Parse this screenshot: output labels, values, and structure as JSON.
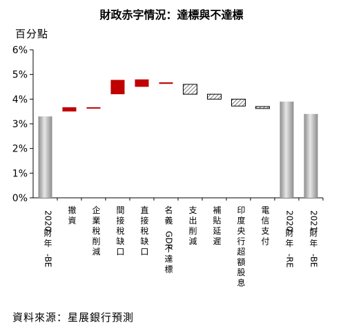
{
  "title": "財政赤字情況：達標與不達標",
  "unit_label": "百分點",
  "source": "資料來源：星展銀行預測",
  "colors": {
    "total_bar": "#b4b4b4",
    "increase": "#c00000",
    "decrease_hatch": "#555555"
  },
  "chart_data": {
    "type": "bar",
    "subtype": "waterfall",
    "y_axis": {
      "min": 0,
      "max": 6,
      "step": 1,
      "suffix": "%",
      "tick_labels": [
        "0%",
        "1%",
        "2%",
        "3%",
        "4%",
        "5%",
        "6%"
      ]
    },
    "grid": false,
    "legend": "none",
    "bars": [
      {
        "label": "2020財年-BE",
        "kind": "total",
        "from": 0,
        "to": 3.3
      },
      {
        "label": "撤資",
        "kind": "increase",
        "from": 3.5,
        "to": 3.67
      },
      {
        "label": "企業稅削減",
        "kind": "increase",
        "from": 3.62,
        "to": 3.67
      },
      {
        "label": "間接稅缺口",
        "kind": "increase",
        "from": 4.2,
        "to": 4.78
      },
      {
        "label": "直接稅缺口",
        "kind": "increase",
        "from": 4.5,
        "to": 4.8
      },
      {
        "label": "名義GDP不達標",
        "kind": "increase",
        "from": 4.62,
        "to": 4.68
      },
      {
        "label": "支出削減",
        "kind": "decrease",
        "from": 4.2,
        "to": 4.6
      },
      {
        "label": "補貼延遲",
        "kind": "decrease",
        "from": 4.0,
        "to": 4.2
      },
      {
        "label": "印度央行超額股息",
        "kind": "decrease",
        "from": 3.72,
        "to": 4.0
      },
      {
        "label": "電信支付",
        "kind": "decrease",
        "from": 3.62,
        "to": 3.7
      },
      {
        "label": "2020財年-RE",
        "kind": "total",
        "from": 0,
        "to": 3.9
      },
      {
        "label": "2021財年-BE",
        "kind": "total",
        "from": 0,
        "to": 3.4
      }
    ]
  }
}
